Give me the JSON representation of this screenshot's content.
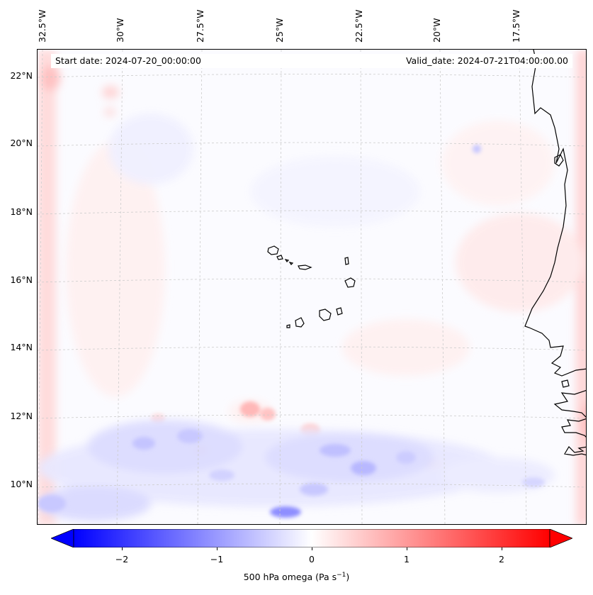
{
  "map": {
    "lon_labels": [
      "32.5°W",
      "30°W",
      "27.5°W",
      "25°W",
      "22.5°W",
      "20°W",
      "17.5°W"
    ],
    "lat_labels": [
      "22°N",
      "20°N",
      "18°N",
      "16°N",
      "14°N",
      "12°N",
      "10°N"
    ],
    "start_date": "Start date: 2024-07-20_00:00:00",
    "valid_date": "Valid_date: 2024-07-21T04:00:00.00",
    "colors": {
      "negative": "#0000ff",
      "neutral": "#ffffff",
      "positive": "#ff0000",
      "coast": "#000000",
      "grid": "#cccccc"
    }
  },
  "colorbar": {
    "ticks": [
      "−2",
      "−1",
      "0",
      "1",
      "2"
    ],
    "tick_values": [
      -2,
      -1,
      0,
      1,
      2
    ],
    "min": -2.5,
    "max": 2.5,
    "label": "500 hPa omega (Pa s",
    "label_sup": "−1",
    "label_end": ")"
  }
}
